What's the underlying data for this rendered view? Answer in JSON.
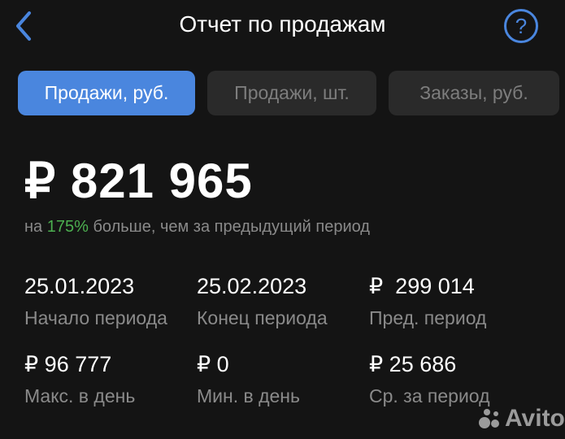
{
  "header": {
    "title": "Отчет по продажам",
    "back_icon": "chevron-left-icon",
    "help_icon": "question-circle-icon",
    "help_glyph": "?"
  },
  "tabs": [
    {
      "label": "Продажи, руб.",
      "active": true
    },
    {
      "label": "Продажи, шт.",
      "active": false
    },
    {
      "label": "Заказы, руб.",
      "active": false
    }
  ],
  "summary": {
    "total": "₽ 821 965",
    "compare_prefix": "на ",
    "compare_percent": "175%",
    "compare_suffix": " больше, чем за предыдущий период"
  },
  "stats": [
    {
      "value": "25.01.2023",
      "label": "Начало периода"
    },
    {
      "value": "25.02.2023",
      "label": "Конец периода"
    },
    {
      "value": "₽  299 014",
      "label": "Пред. период"
    },
    {
      "value": "₽ 96 777",
      "label": "Макс. в день"
    },
    {
      "value": "₽ 0",
      "label": "Мин. в день"
    },
    {
      "value": "₽ 25 686",
      "label": "Ср. за период"
    }
  ],
  "watermark": "Avito",
  "colors": {
    "accent": "#4a86de",
    "positive": "#4caf50",
    "background": "#141414"
  }
}
